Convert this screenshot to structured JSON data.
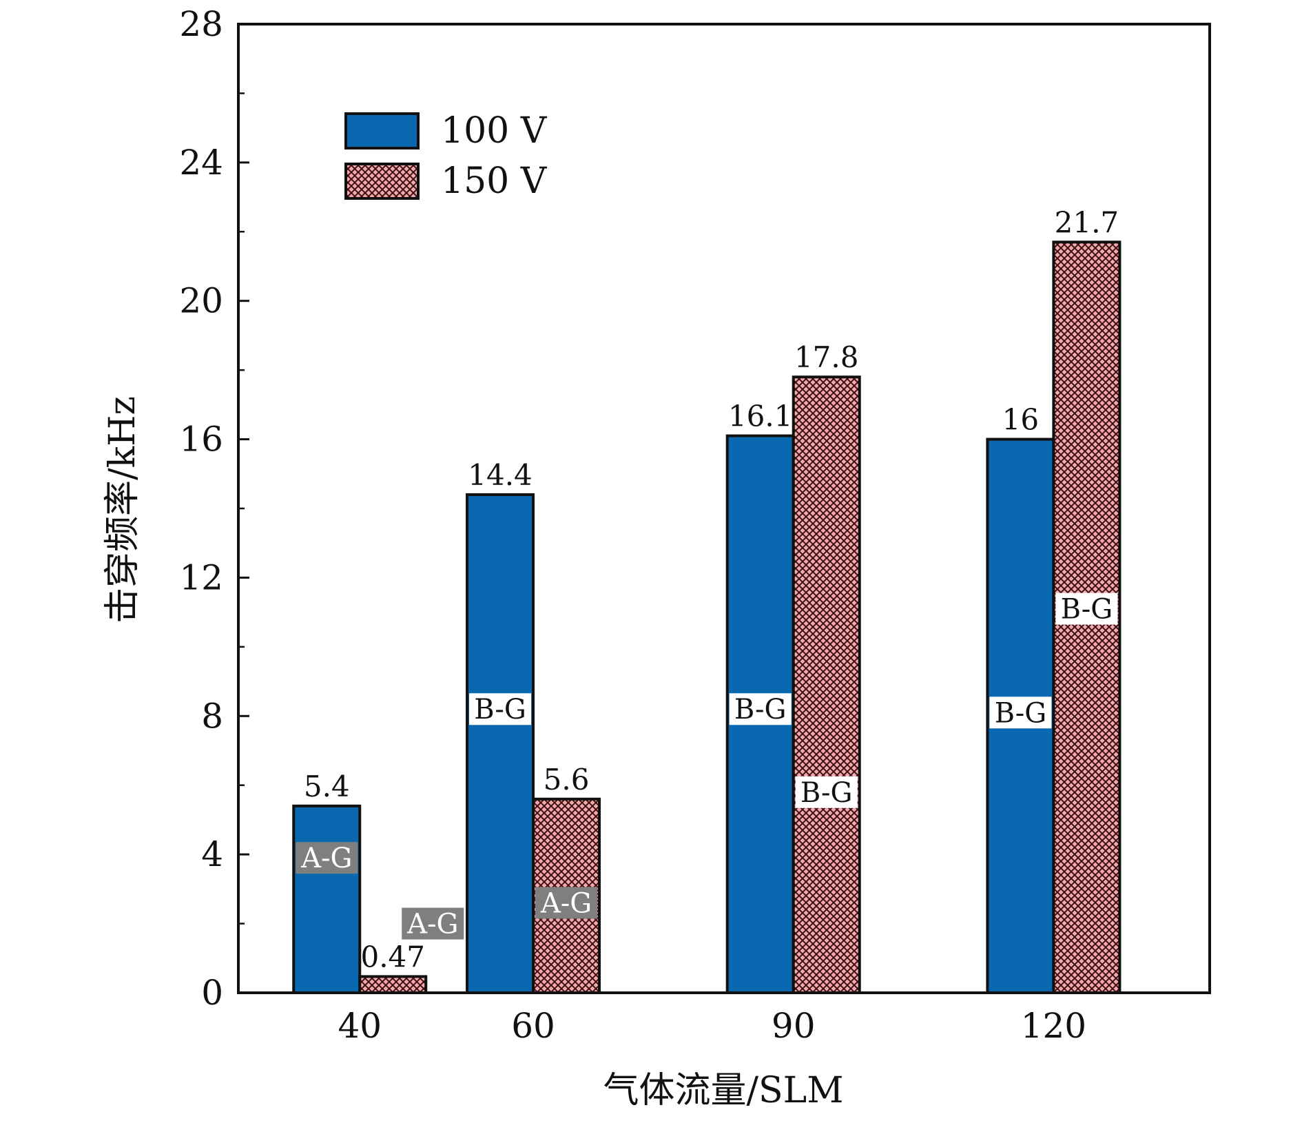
{
  "chart_data": {
    "type": "bar",
    "categories": [
      "40",
      "60",
      "90",
      "120"
    ],
    "x_positions": [
      40,
      60,
      90,
      120
    ],
    "series": [
      {
        "name": "100 V",
        "values": [
          5.4,
          14.4,
          16.1,
          16
        ],
        "value_labels": [
          "5.4",
          "14.4",
          "16.1",
          "16"
        ],
        "region_labels": [
          "A-G",
          "B-G",
          "B-G",
          "B-G"
        ],
        "region_label_values": [
          3.9,
          8.2,
          8.2,
          8.1
        ],
        "color": "#0a68b1",
        "pattern": "solid"
      },
      {
        "name": "150 V",
        "values": [
          0.47,
          5.6,
          17.8,
          21.7
        ],
        "value_labels": [
          "0.47",
          "5.6",
          "17.8",
          "21.7"
        ],
        "region_labels": [
          "A-G",
          "A-G",
          "B-G",
          "B-G"
        ],
        "region_label_values": [
          2.0,
          2.6,
          5.8,
          11.1
        ],
        "color": "#f4a8ad",
        "pattern": "crosshatch"
      }
    ],
    "xlabel": "气体流量/SLM",
    "ylabel": "击穿频率/kHz",
    "xlim": [
      26,
      138
    ],
    "ylim": [
      0,
      28
    ],
    "yticks": [
      "0",
      "4",
      "8",
      "12",
      "16",
      "20",
      "24",
      "28"
    ],
    "legend_position": "top-left",
    "grid": false,
    "region_label_colors": {
      "A-G": {
        "bg": "#7f7f7f",
        "fg": "#ffffff"
      },
      "B-G": {
        "bg": "#ffffff",
        "fg": "#111111"
      }
    }
  }
}
